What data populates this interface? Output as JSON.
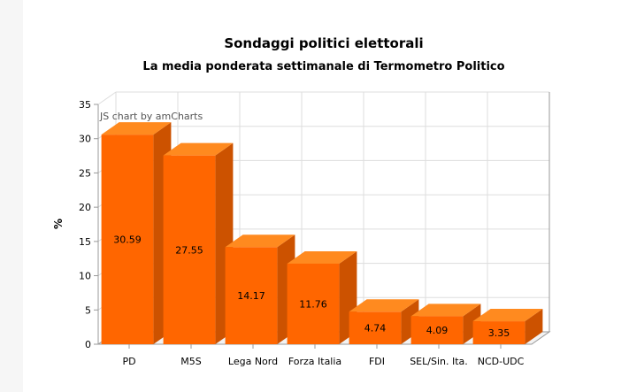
{
  "credit": "JS chart by amCharts",
  "chart_data": {
    "type": "bar",
    "title": "Sondaggi politici elettorali",
    "subtitle": "La media ponderata settimanale di Termometro Politico",
    "xlabel": "",
    "ylabel": "%",
    "ylim": [
      0,
      35
    ],
    "yticks": [
      0,
      5,
      10,
      15,
      20,
      25,
      30,
      35
    ],
    "grid": true,
    "legend": "none",
    "categories": [
      "PD",
      "M5S",
      "Lega Nord",
      "Forza Italia",
      "FDI",
      "SEL/Sin. Ita.",
      "NCD-UDC"
    ],
    "values": [
      30.59,
      27.55,
      14.17,
      11.76,
      4.74,
      4.09,
      3.35
    ],
    "value_labels": [
      "30.59",
      "27.55",
      "14.17",
      "11.76",
      "4.74",
      "4.09",
      "3.35"
    ],
    "colors": {
      "front": "#ff6600",
      "side": "#cc5200",
      "top": "#ff8a1f",
      "grid": "#dddddd",
      "axis": "#999999"
    }
  }
}
